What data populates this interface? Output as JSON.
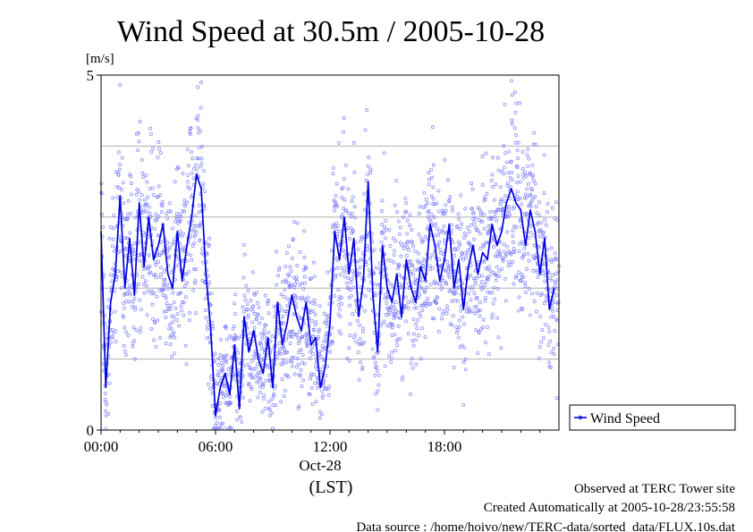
{
  "chart_data": {
    "type": "line",
    "title": "Wind Speed at 30.5m / 2005-10-28",
    "ylabel": "[m/s]",
    "xlabel": "(LST)",
    "date_label": "Oct-28",
    "ylim": [
      0,
      5
    ],
    "xlim": [
      0,
      24
    ],
    "y_ticks": [
      {
        "value": 0,
        "label": "0"
      },
      {
        "value": 5,
        "label": "5"
      }
    ],
    "y_gridlines": [
      1,
      2,
      3,
      4
    ],
    "x_ticks": [
      {
        "value": 0,
        "label": "00:00"
      },
      {
        "value": 6,
        "label": "06:00"
      },
      {
        "value": 12,
        "label": "12:00"
      },
      {
        "value": 18,
        "label": "18:00"
      }
    ],
    "grid": true,
    "legend_position": "right",
    "series": [
      {
        "name": "Wind Speed",
        "style": "line+points",
        "color": "#0000dd",
        "point_color": "#8080ff",
        "x": [
          0.0,
          0.25,
          0.5,
          0.75,
          1.0,
          1.25,
          1.5,
          1.75,
          2.0,
          2.25,
          2.5,
          2.75,
          3.0,
          3.25,
          3.5,
          3.75,
          4.0,
          4.25,
          4.5,
          4.75,
          5.0,
          5.25,
          5.5,
          5.75,
          6.0,
          6.25,
          6.5,
          6.75,
          7.0,
          7.25,
          7.5,
          7.75,
          8.0,
          8.25,
          8.5,
          8.75,
          9.0,
          9.25,
          9.5,
          9.75,
          10.0,
          10.25,
          10.5,
          10.75,
          11.0,
          11.25,
          11.5,
          11.75,
          12.0,
          12.25,
          12.5,
          12.75,
          13.0,
          13.25,
          13.5,
          13.75,
          14.0,
          14.25,
          14.5,
          14.75,
          15.0,
          15.25,
          15.5,
          15.75,
          16.0,
          16.25,
          16.5,
          16.75,
          17.0,
          17.25,
          17.5,
          17.75,
          18.0,
          18.25,
          18.5,
          18.75,
          19.0,
          19.25,
          19.5,
          19.75,
          20.0,
          20.25,
          20.5,
          20.75,
          21.0,
          21.25,
          21.5,
          21.75,
          22.0,
          22.25,
          22.5,
          22.75,
          23.0,
          23.25,
          23.5,
          23.75
        ],
        "values": [
          2.8,
          0.6,
          1.8,
          2.2,
          3.3,
          2.0,
          2.7,
          1.9,
          3.2,
          2.3,
          3.0,
          2.4,
          2.6,
          2.9,
          2.2,
          2.0,
          2.8,
          2.1,
          2.6,
          3.0,
          3.6,
          3.4,
          2.2,
          1.4,
          0.2,
          0.6,
          0.8,
          0.5,
          1.2,
          0.3,
          1.6,
          1.1,
          1.4,
          1.0,
          0.8,
          1.3,
          0.6,
          1.8,
          1.2,
          1.5,
          1.9,
          1.6,
          1.4,
          1.8,
          1.2,
          1.3,
          0.6,
          0.9,
          1.5,
          2.8,
          2.4,
          3.0,
          2.2,
          2.7,
          1.6,
          2.1,
          3.5,
          1.9,
          1.1,
          2.6,
          2.0,
          1.8,
          2.2,
          1.6,
          2.4,
          2.0,
          1.8,
          2.3,
          2.1,
          2.9,
          2.6,
          2.1,
          2.4,
          2.9,
          2.0,
          2.4,
          1.7,
          2.3,
          2.6,
          2.2,
          2.5,
          2.4,
          2.9,
          2.6,
          2.8,
          3.2,
          3.4,
          3.2,
          3.1,
          2.6,
          3.1,
          2.8,
          2.2,
          2.7,
          1.7,
          2.0
        ]
      }
    ]
  },
  "footer": {
    "observed": "Observed at TERC Tower site",
    "created": "Created Automatically at 2005-10-28/23:55:58",
    "source": "Data source : /home/hoivo/new/TERC-data/sorted_data/FLUX.10s.dat"
  }
}
